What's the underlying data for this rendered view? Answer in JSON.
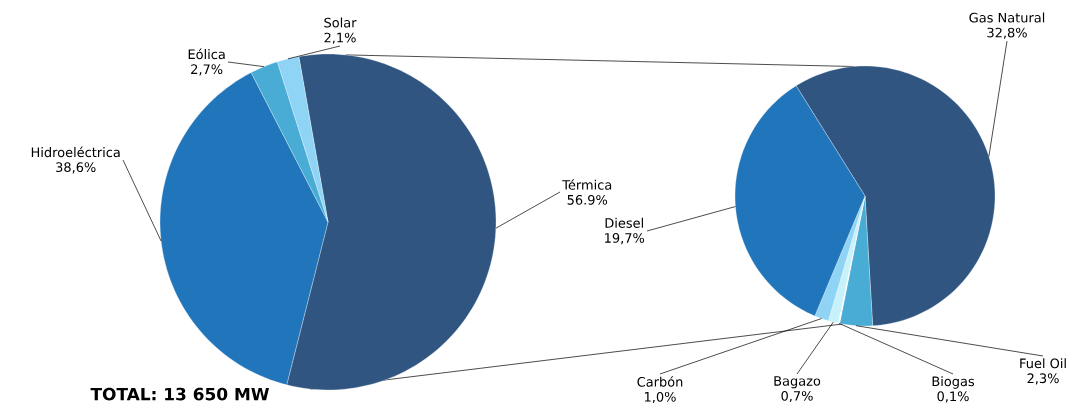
{
  "chart_data": [
    {
      "type": "pie",
      "categories": [
        "Térmica",
        "Hidroeléctrica",
        "Eólica",
        "Solar"
      ],
      "values": [
        56.9,
        38.6,
        2.7,
        2.1
      ],
      "colors": [
        "#2f5580",
        "#2175bb",
        "#48acd4",
        "#8fd3f5"
      ],
      "value_labels": [
        "56.9%",
        "38,6%",
        "2,7%",
        "2,1%"
      ],
      "annotations": [
        "TOTAL: 13 650 MW"
      ]
    },
    {
      "type": "pie",
      "categories": [
        "Gas Natural",
        "Fuel Oil",
        "Biogas",
        "Bagazo",
        "Carbón",
        "Diesel"
      ],
      "values": [
        32.8,
        2.3,
        0.1,
        0.7,
        1.0,
        19.7
      ],
      "colors": [
        "#2f5580",
        "#48acd4",
        "#ffffff",
        "#c8f2fb",
        "#8fd3f5",
        "#2175bb"
      ],
      "value_labels": [
        "32,8%",
        "2,3%",
        "0,1%",
        "0,7%",
        "1,0%",
        "19,7%"
      ]
    }
  ]
}
